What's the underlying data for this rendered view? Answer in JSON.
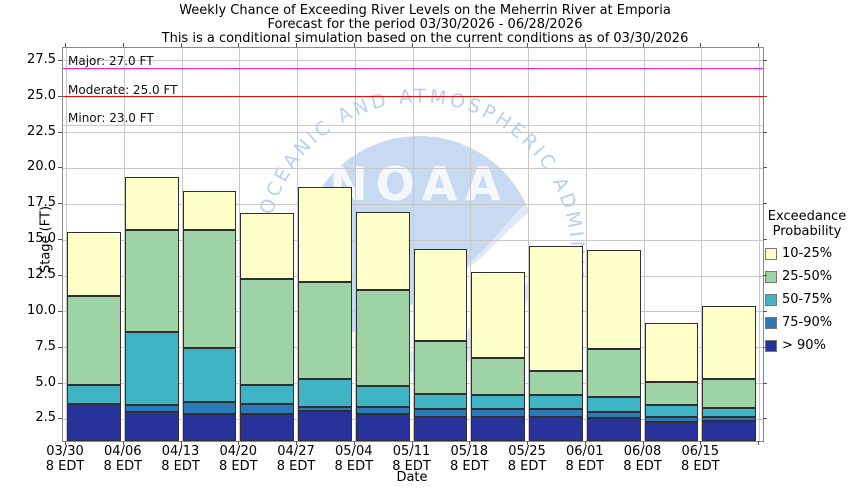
{
  "title_lines": [
    "Weekly Chance of Exceeding River Levels on the Meherrin River at Emporia",
    "Forecast for the period 03/30/2026 - 06/28/2026",
    "This is a conditional simulation based on the current conditions as of 03/30/2026"
  ],
  "axes": {
    "y_label": "Stage (FT)",
    "x_label": "Date",
    "y_ticks": [
      "2.5",
      "5.0",
      "7.5",
      "10.0",
      "12.5",
      "15.0",
      "17.5",
      "20.0",
      "22.5",
      "25.0",
      "27.5"
    ]
  },
  "thresholds": [
    {
      "name": "Major",
      "label": "Major: 27.0 FT",
      "value": 27.0,
      "color": "#FF1FDA"
    },
    {
      "name": "Moderate",
      "label": "Moderate: 25.0 FT",
      "value": 25.0,
      "color": "#FF0000"
    },
    {
      "name": "Minor",
      "label": "Minor: 23.0 FT",
      "value": 23.0,
      "color": "#FFD700"
    }
  ],
  "legend": {
    "title_lines": [
      "Exceedance",
      "Probability"
    ],
    "items": [
      {
        "label": "10-25%",
        "color": "#FFFFC9"
      },
      {
        "label": "25-50%",
        "color": "#9ED3A6"
      },
      {
        "label": "50-75%",
        "color": "#3FB4C4"
      },
      {
        "label": "75-90%",
        "color": "#2A79BA"
      },
      {
        "label": "> 90%",
        "color": "#28329B"
      }
    ]
  },
  "watermark": {
    "org": "NOAA",
    "arc_text": "NATIONAL OCEANIC AND ATMOSPHERIC ADMINISTRATION"
  },
  "chart_data": {
    "type": "stacked-bar",
    "title": "Weekly Chance of Exceeding River Levels on the Meherrin River at Emporia",
    "xlabel": "Date",
    "ylabel": "Stage (FT)",
    "ylim": [
      1.0,
      28.4
    ],
    "base_value": 1.0,
    "grid": true,
    "legend_position": "right",
    "categories": [
      {
        "date": "03/30",
        "time": "8 EDT"
      },
      {
        "date": "04/06",
        "time": "8 EDT"
      },
      {
        "date": "04/13",
        "time": "8 EDT"
      },
      {
        "date": "04/20",
        "time": "8 EDT"
      },
      {
        "date": "04/27",
        "time": "8 EDT"
      },
      {
        "date": "05/04",
        "time": "8 EDT"
      },
      {
        "date": "05/11",
        "time": "8 EDT"
      },
      {
        "date": "05/18",
        "time": "8 EDT"
      },
      {
        "date": "05/25",
        "time": "8 EDT"
      },
      {
        "date": "06/01",
        "time": "8 EDT"
      },
      {
        "date": "06/08",
        "time": "8 EDT"
      },
      {
        "date": "06/15",
        "time": "8 EDT"
      }
    ],
    "series": [
      {
        "name": "> 90%",
        "color": "#28329B",
        "cumulative_top_ft": [
          3.6,
          3.0,
          2.9,
          2.9,
          3.1,
          2.9,
          2.7,
          2.7,
          2.7,
          2.6,
          2.3,
          2.4
        ]
      },
      {
        "name": "75-90%",
        "color": "#2A79BA",
        "cumulative_top_ft": [
          3.6,
          3.5,
          3.7,
          3.6,
          3.4,
          3.4,
          3.2,
          3.2,
          3.2,
          3.0,
          2.7,
          2.7
        ]
      },
      {
        "name": "50-75%",
        "color": "#3FB4C4",
        "cumulative_top_ft": [
          4.9,
          8.6,
          7.5,
          4.9,
          5.3,
          4.8,
          4.3,
          4.2,
          4.2,
          4.1,
          3.5,
          3.3
        ]
      },
      {
        "name": "25-50%",
        "color": "#9ED3A6",
        "cumulative_top_ft": [
          11.1,
          15.7,
          15.7,
          12.3,
          12.1,
          11.5,
          8.0,
          6.8,
          5.9,
          7.4,
          5.1,
          5.3
        ]
      },
      {
        "name": "10-25%",
        "color": "#FFFFC9",
        "cumulative_top_ft": [
          15.6,
          19.4,
          18.4,
          16.9,
          18.7,
          17.0,
          14.4,
          12.8,
          14.6,
          14.3,
          9.2,
          10.4
        ]
      }
    ]
  }
}
